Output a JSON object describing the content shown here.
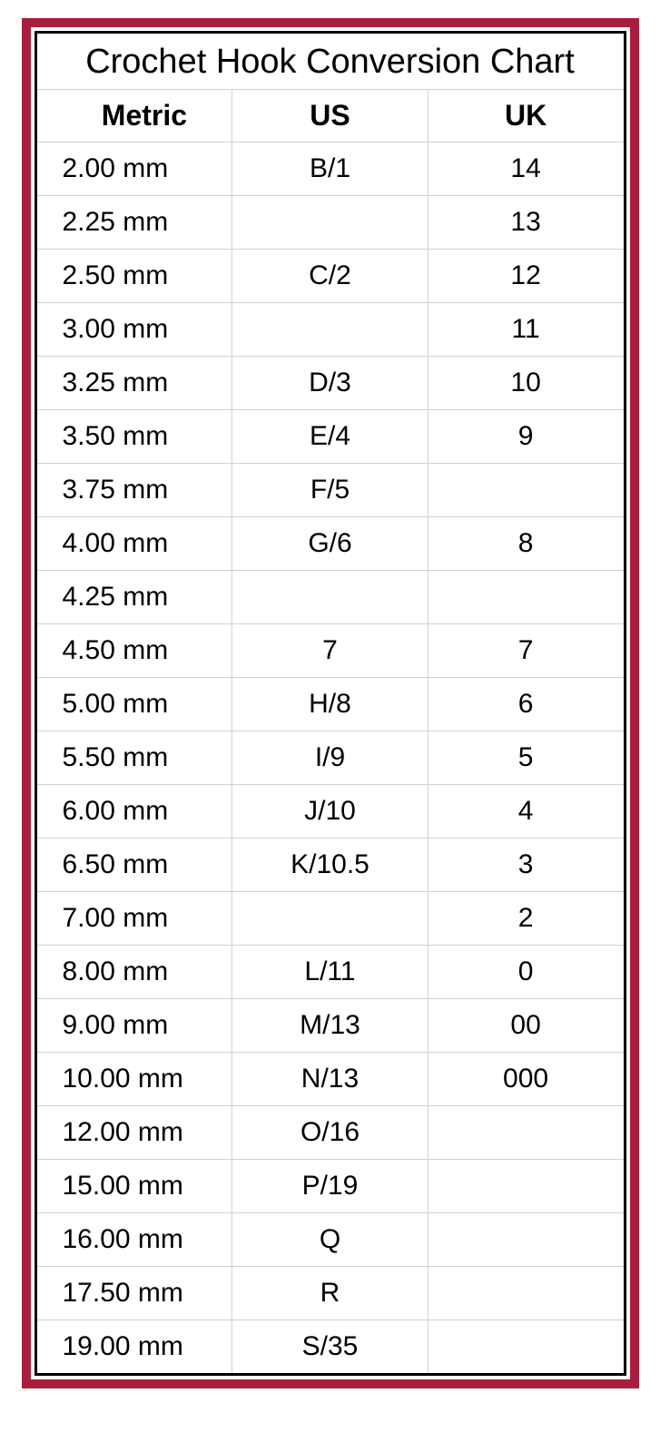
{
  "title": "Crochet Hook Conversion Chart",
  "columns": [
    "Metric",
    "US",
    "UK"
  ],
  "rows": [
    {
      "metric": "2.00 mm",
      "us": "B/1",
      "uk": "14"
    },
    {
      "metric": "2.25 mm",
      "us": "",
      "uk": "13"
    },
    {
      "metric": "2.50 mm",
      "us": "C/2",
      "uk": "12"
    },
    {
      "metric": "3.00 mm",
      "us": "",
      "uk": "11"
    },
    {
      "metric": "3.25 mm",
      "us": "D/3",
      "uk": "10"
    },
    {
      "metric": "3.50 mm",
      "us": "E/4",
      "uk": "9"
    },
    {
      "metric": "3.75 mm",
      "us": "F/5",
      "uk": ""
    },
    {
      "metric": "4.00 mm",
      "us": "G/6",
      "uk": "8"
    },
    {
      "metric": "4.25 mm",
      "us": "",
      "uk": ""
    },
    {
      "metric": "4.50 mm",
      "us": "7",
      "uk": "7"
    },
    {
      "metric": "5.00 mm",
      "us": "H/8",
      "uk": "6"
    },
    {
      "metric": "5.50 mm",
      "us": "I/9",
      "uk": "5"
    },
    {
      "metric": "6.00 mm",
      "us": "J/10",
      "uk": "4"
    },
    {
      "metric": "6.50 mm",
      "us": "K/10.5",
      "uk": "3"
    },
    {
      "metric": "7.00 mm",
      "us": "",
      "uk": "2"
    },
    {
      "metric": "8.00 mm",
      "us": "L/11",
      "uk": "0"
    },
    {
      "metric": "9.00 mm",
      "us": "M/13",
      "uk": "00"
    },
    {
      "metric": "10.00 mm",
      "us": "N/13",
      "uk": "000"
    },
    {
      "metric": "12.00 mm",
      "us": "O/16",
      "uk": ""
    },
    {
      "metric": "15.00 mm",
      "us": "P/19",
      "uk": ""
    },
    {
      "metric": "16.00 mm",
      "us": "Q",
      "uk": ""
    },
    {
      "metric": "17.50 mm",
      "us": "R",
      "uk": ""
    },
    {
      "metric": "19.00 mm",
      "us": "S/35",
      "uk": ""
    }
  ],
  "colors": {
    "frame_outer": "#a91e3f",
    "frame_inner": "#000000",
    "grid": "#d0d0d0",
    "background": "#ffffff",
    "text": "#000000"
  },
  "fonts": {
    "title_size_pt": 38,
    "header_size_pt": 32,
    "cell_size_pt": 30,
    "header_weight": "bold",
    "cell_weight": "normal"
  }
}
